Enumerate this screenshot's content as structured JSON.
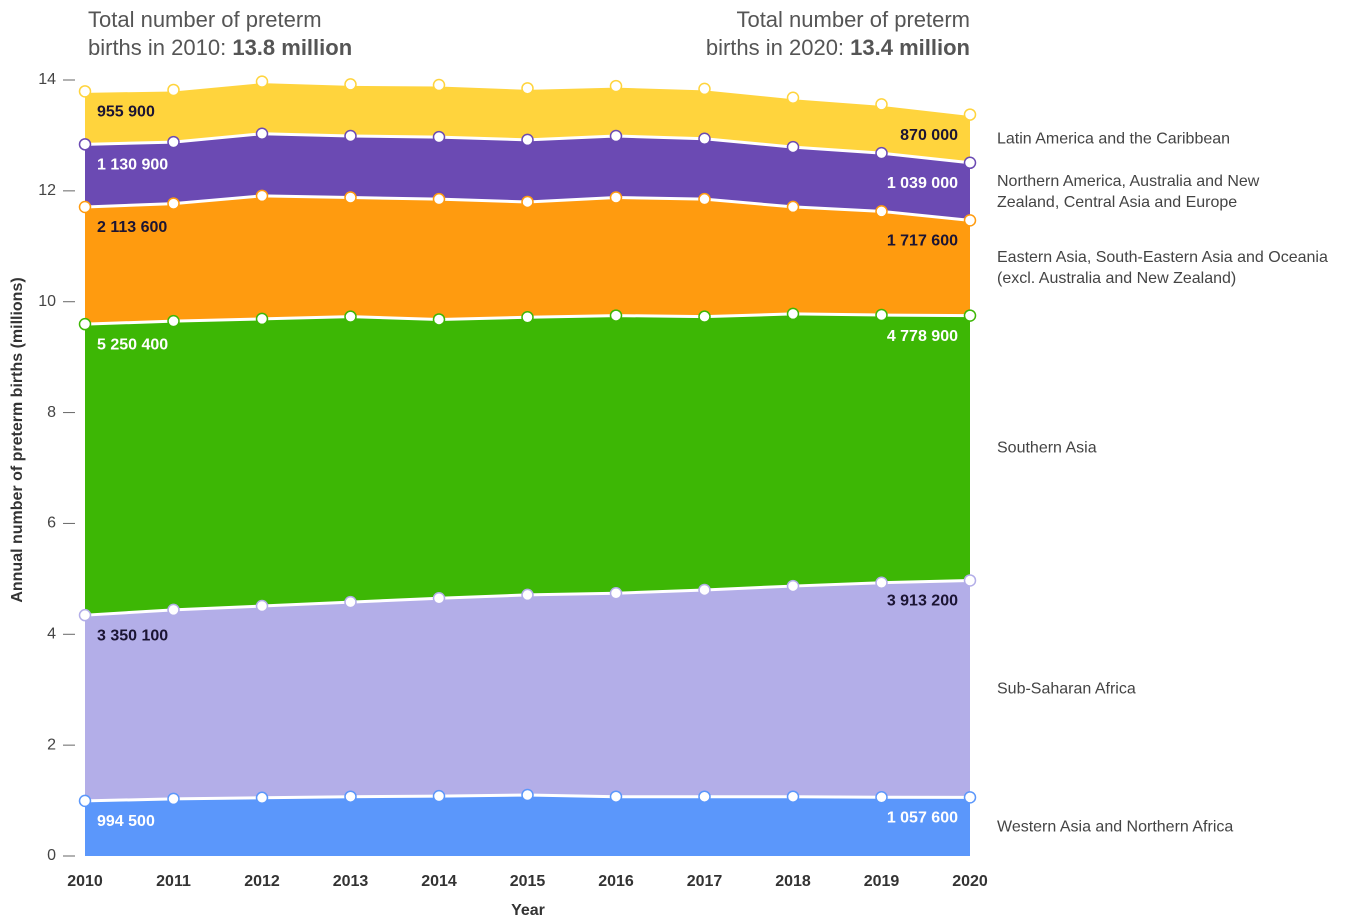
{
  "chart_data": {
    "type": "stacked_area",
    "annotations": [
      {
        "text": "Total number of preterm births in 2010:",
        "emphasis": "13.8 million"
      },
      {
        "text": "Total number of preterm births in 2020:",
        "emphasis": "13.4 million"
      }
    ],
    "x_label": "Year",
    "y_label": "Annual number of preterm births (millions)",
    "x": [
      2010,
      2011,
      2012,
      2013,
      2014,
      2015,
      2016,
      2017,
      2018,
      2019,
      2020
    ],
    "xlim": [
      2010,
      2020
    ],
    "xticks": [
      2010,
      2011,
      2012,
      2013,
      2014,
      2015,
      2016,
      2017,
      2018,
      2019,
      2020
    ],
    "ylim": [
      0,
      14
    ],
    "yticks": [
      0,
      2,
      4,
      6,
      8,
      10,
      12,
      14
    ],
    "grid": false,
    "series": [
      {
        "name": "Western Asia and Northern Africa",
        "color": "#5b97fb",
        "values": [
          0.9945,
          1.03,
          1.05,
          1.07,
          1.08,
          1.1,
          1.07,
          1.07,
          1.07,
          1.06,
          1.0576
        ],
        "value_labels": [
          "994 500",
          null,
          null,
          null,
          null,
          null,
          null,
          null,
          null,
          null,
          "1 057 600"
        ]
      },
      {
        "name": "Sub-Saharan Africa",
        "color": "#b3aee8",
        "values": [
          3.3501,
          3.41,
          3.46,
          3.51,
          3.57,
          3.61,
          3.67,
          3.73,
          3.8,
          3.87,
          3.9132
        ],
        "value_labels": [
          "3 350 100",
          null,
          null,
          null,
          null,
          null,
          null,
          null,
          null,
          null,
          "3 913 200"
        ]
      },
      {
        "name": "Southern Asia",
        "color": "#3db705",
        "values": [
          5.2504,
          5.21,
          5.18,
          5.15,
          5.03,
          5.01,
          5.01,
          4.93,
          4.91,
          4.83,
          4.7789
        ],
        "value_labels": [
          "5 250 400",
          null,
          null,
          null,
          null,
          null,
          null,
          null,
          null,
          null,
          "4 778 900"
        ]
      },
      {
        "name": "Eastern Asia, South-Eastern Asia and Oceania (excl. Australia and New Zealand)",
        "color": "#ff9b0f",
        "values": [
          2.1136,
          2.12,
          2.22,
          2.15,
          2.17,
          2.08,
          2.13,
          2.12,
          1.93,
          1.87,
          1.7176
        ],
        "value_labels": [
          "2 113 600",
          null,
          null,
          null,
          null,
          null,
          null,
          null,
          null,
          null,
          "1 717 600"
        ]
      },
      {
        "name": "Northern America, Australia and New Zealand, Central Asia and Europe",
        "color": "#6b4ab3",
        "values": [
          1.1309,
          1.11,
          1.12,
          1.11,
          1.12,
          1.12,
          1.11,
          1.09,
          1.08,
          1.05,
          1.039
        ],
        "value_labels": [
          "1 130 900",
          null,
          null,
          null,
          null,
          null,
          null,
          null,
          null,
          null,
          "1 039 000"
        ]
      },
      {
        "name": "Latin America and the Caribbean",
        "color": "#ffd43d",
        "values": [
          0.9559,
          0.94,
          0.94,
          0.93,
          0.94,
          0.93,
          0.9,
          0.9,
          0.89,
          0.88,
          0.87
        ],
        "value_labels": [
          "955 900",
          null,
          null,
          null,
          null,
          null,
          null,
          null,
          null,
          null,
          "870 000"
        ]
      }
    ]
  }
}
